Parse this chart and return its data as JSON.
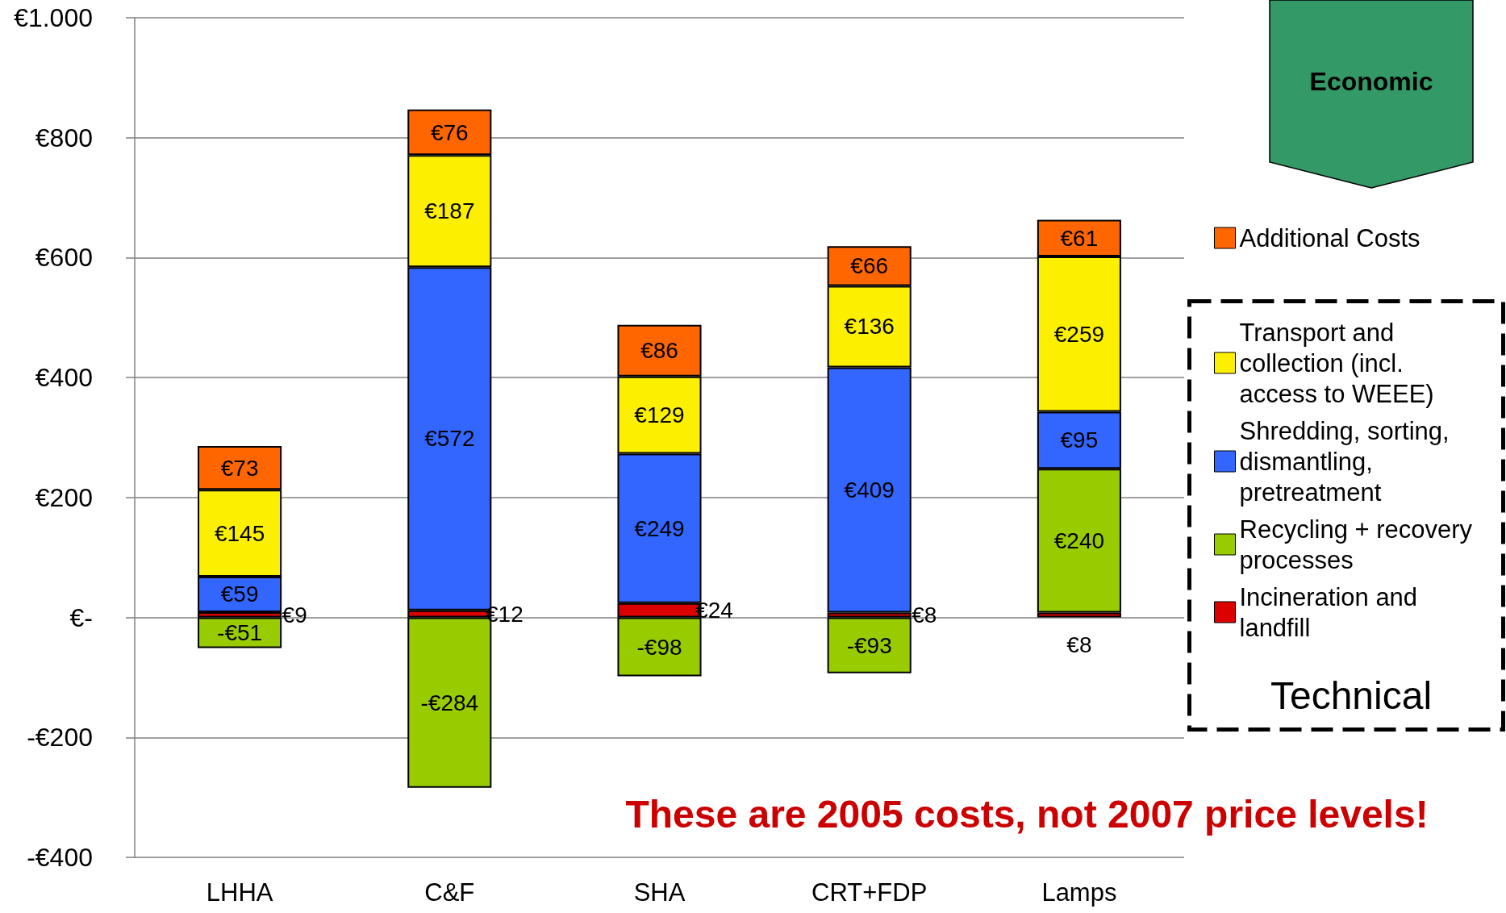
{
  "chart_data": {
    "type": "bar",
    "stacked": true,
    "categories": [
      "LHHA",
      "C&F",
      "SHA",
      "CRT+FDP",
      "Lamps"
    ],
    "series": [
      {
        "name": "Incineration and landfill",
        "color": "#dd0000",
        "values": [
          9,
          12,
          24,
          8,
          8
        ],
        "value_labels": [
          "€9",
          "€12",
          "€24",
          "€8",
          "€8"
        ]
      },
      {
        "name": "Recycling + recovery processes",
        "color": "#99cc00",
        "values": [
          -51,
          -284,
          -98,
          -93,
          240
        ],
        "value_labels": [
          "-€51",
          "-€284",
          "-€98",
          "-€93",
          "€240"
        ]
      },
      {
        "name": "Shredding, sorting, dismantling, pretreatment",
        "color": "#3366ff",
        "values": [
          59,
          572,
          249,
          409,
          95
        ],
        "value_labels": [
          "€59",
          "€572",
          "€249",
          "€409",
          "€95"
        ]
      },
      {
        "name": "Transport and collection (incl. access to WEEE)",
        "color": "#fcf000",
        "values": [
          145,
          187,
          129,
          136,
          259
        ],
        "value_labels": [
          "€145",
          "€187",
          "€129",
          "€136",
          "€259"
        ]
      },
      {
        "name": "Additional Costs",
        "color": "#ff6600",
        "values": [
          73,
          76,
          86,
          66,
          61
        ],
        "value_labels": [
          "€73",
          "€76",
          "€86",
          "€66",
          "€61"
        ]
      }
    ],
    "ylim": [
      -400,
      1000
    ],
    "yticks": [
      {
        "value": -400,
        "label": "-€400"
      },
      {
        "value": -200,
        "label": "-€200"
      },
      {
        "value": 0,
        "label": "€-"
      },
      {
        "value": 200,
        "label": "€200"
      },
      {
        "value": 400,
        "label": "€400"
      },
      {
        "value": 600,
        "label": "€600"
      },
      {
        "value": 800,
        "label": "€800"
      },
      {
        "value": 1000,
        "label": "€1.000"
      }
    ],
    "grid": "y",
    "legend": "right",
    "annotations": [
      "Economic",
      "Technical",
      "These are 2005 costs, not 2007 price levels!"
    ]
  }
}
